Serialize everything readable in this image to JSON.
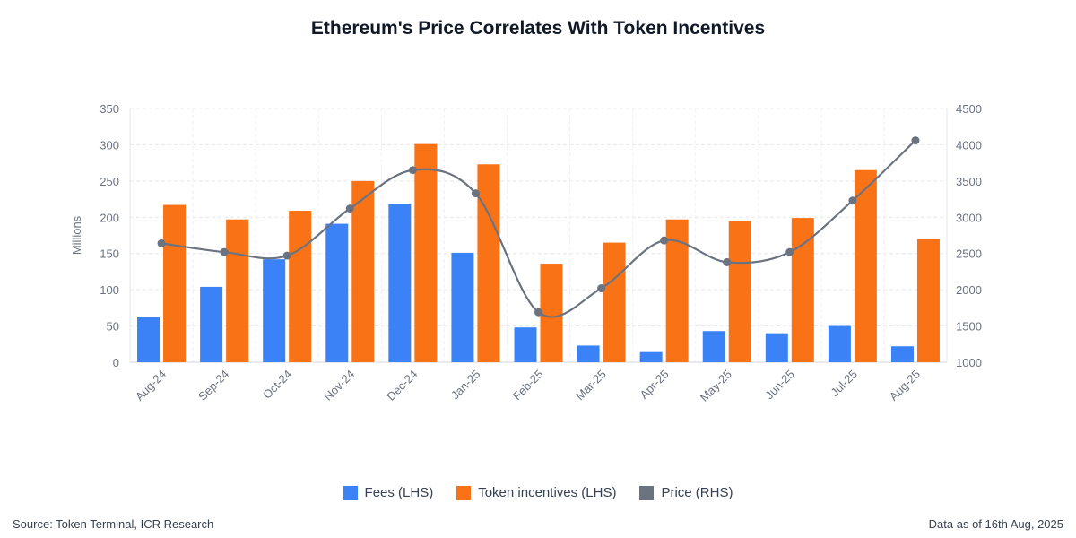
{
  "title": "Ethereum's Price Correlates With Token Incentives",
  "chart_data": {
    "type": "bar",
    "title": "Ethereum's Price Correlates With Token Incentives",
    "categories": [
      "Aug-24",
      "Sep-24",
      "Oct-24",
      "Nov-24",
      "Dec-24",
      "Jan-25",
      "Feb-25",
      "Mar-25",
      "Apr-25",
      "May-25",
      "Jun-25",
      "Jul-25",
      "Aug-25"
    ],
    "ylabel": "Millions",
    "ylim": [
      0,
      350
    ],
    "yticks": [
      0,
      50,
      100,
      150,
      200,
      250,
      300,
      350
    ],
    "y2lim": [
      1000,
      4500
    ],
    "y2ticks": [
      1000,
      1500,
      2000,
      2500,
      3000,
      3500,
      4000,
      4500
    ],
    "grid": true,
    "legend_position": "bottom-center",
    "series": [
      {
        "name": "Fees (LHS)",
        "type": "bar",
        "axis": "left",
        "color": "#3b82f6",
        "values": [
          63,
          104,
          142,
          191,
          218,
          151,
          48,
          23,
          14,
          43,
          40,
          50,
          22
        ]
      },
      {
        "name": "Token incentives (LHS)",
        "type": "bar",
        "axis": "left",
        "color": "#f97316",
        "values": [
          217,
          197,
          209,
          250,
          301,
          273,
          136,
          165,
          197,
          195,
          199,
          265,
          170
        ]
      },
      {
        "name": "Price (RHS)",
        "type": "line",
        "axis": "right",
        "color": "#6b7280",
        "values": [
          2640,
          2520,
          2470,
          3120,
          3650,
          3330,
          1690,
          2020,
          2680,
          2380,
          2520,
          3230,
          4060
        ]
      }
    ]
  },
  "footer": {
    "source": "Source: Token Terminal, ICR Research",
    "date": "Data as of 16th Aug, 2025"
  }
}
